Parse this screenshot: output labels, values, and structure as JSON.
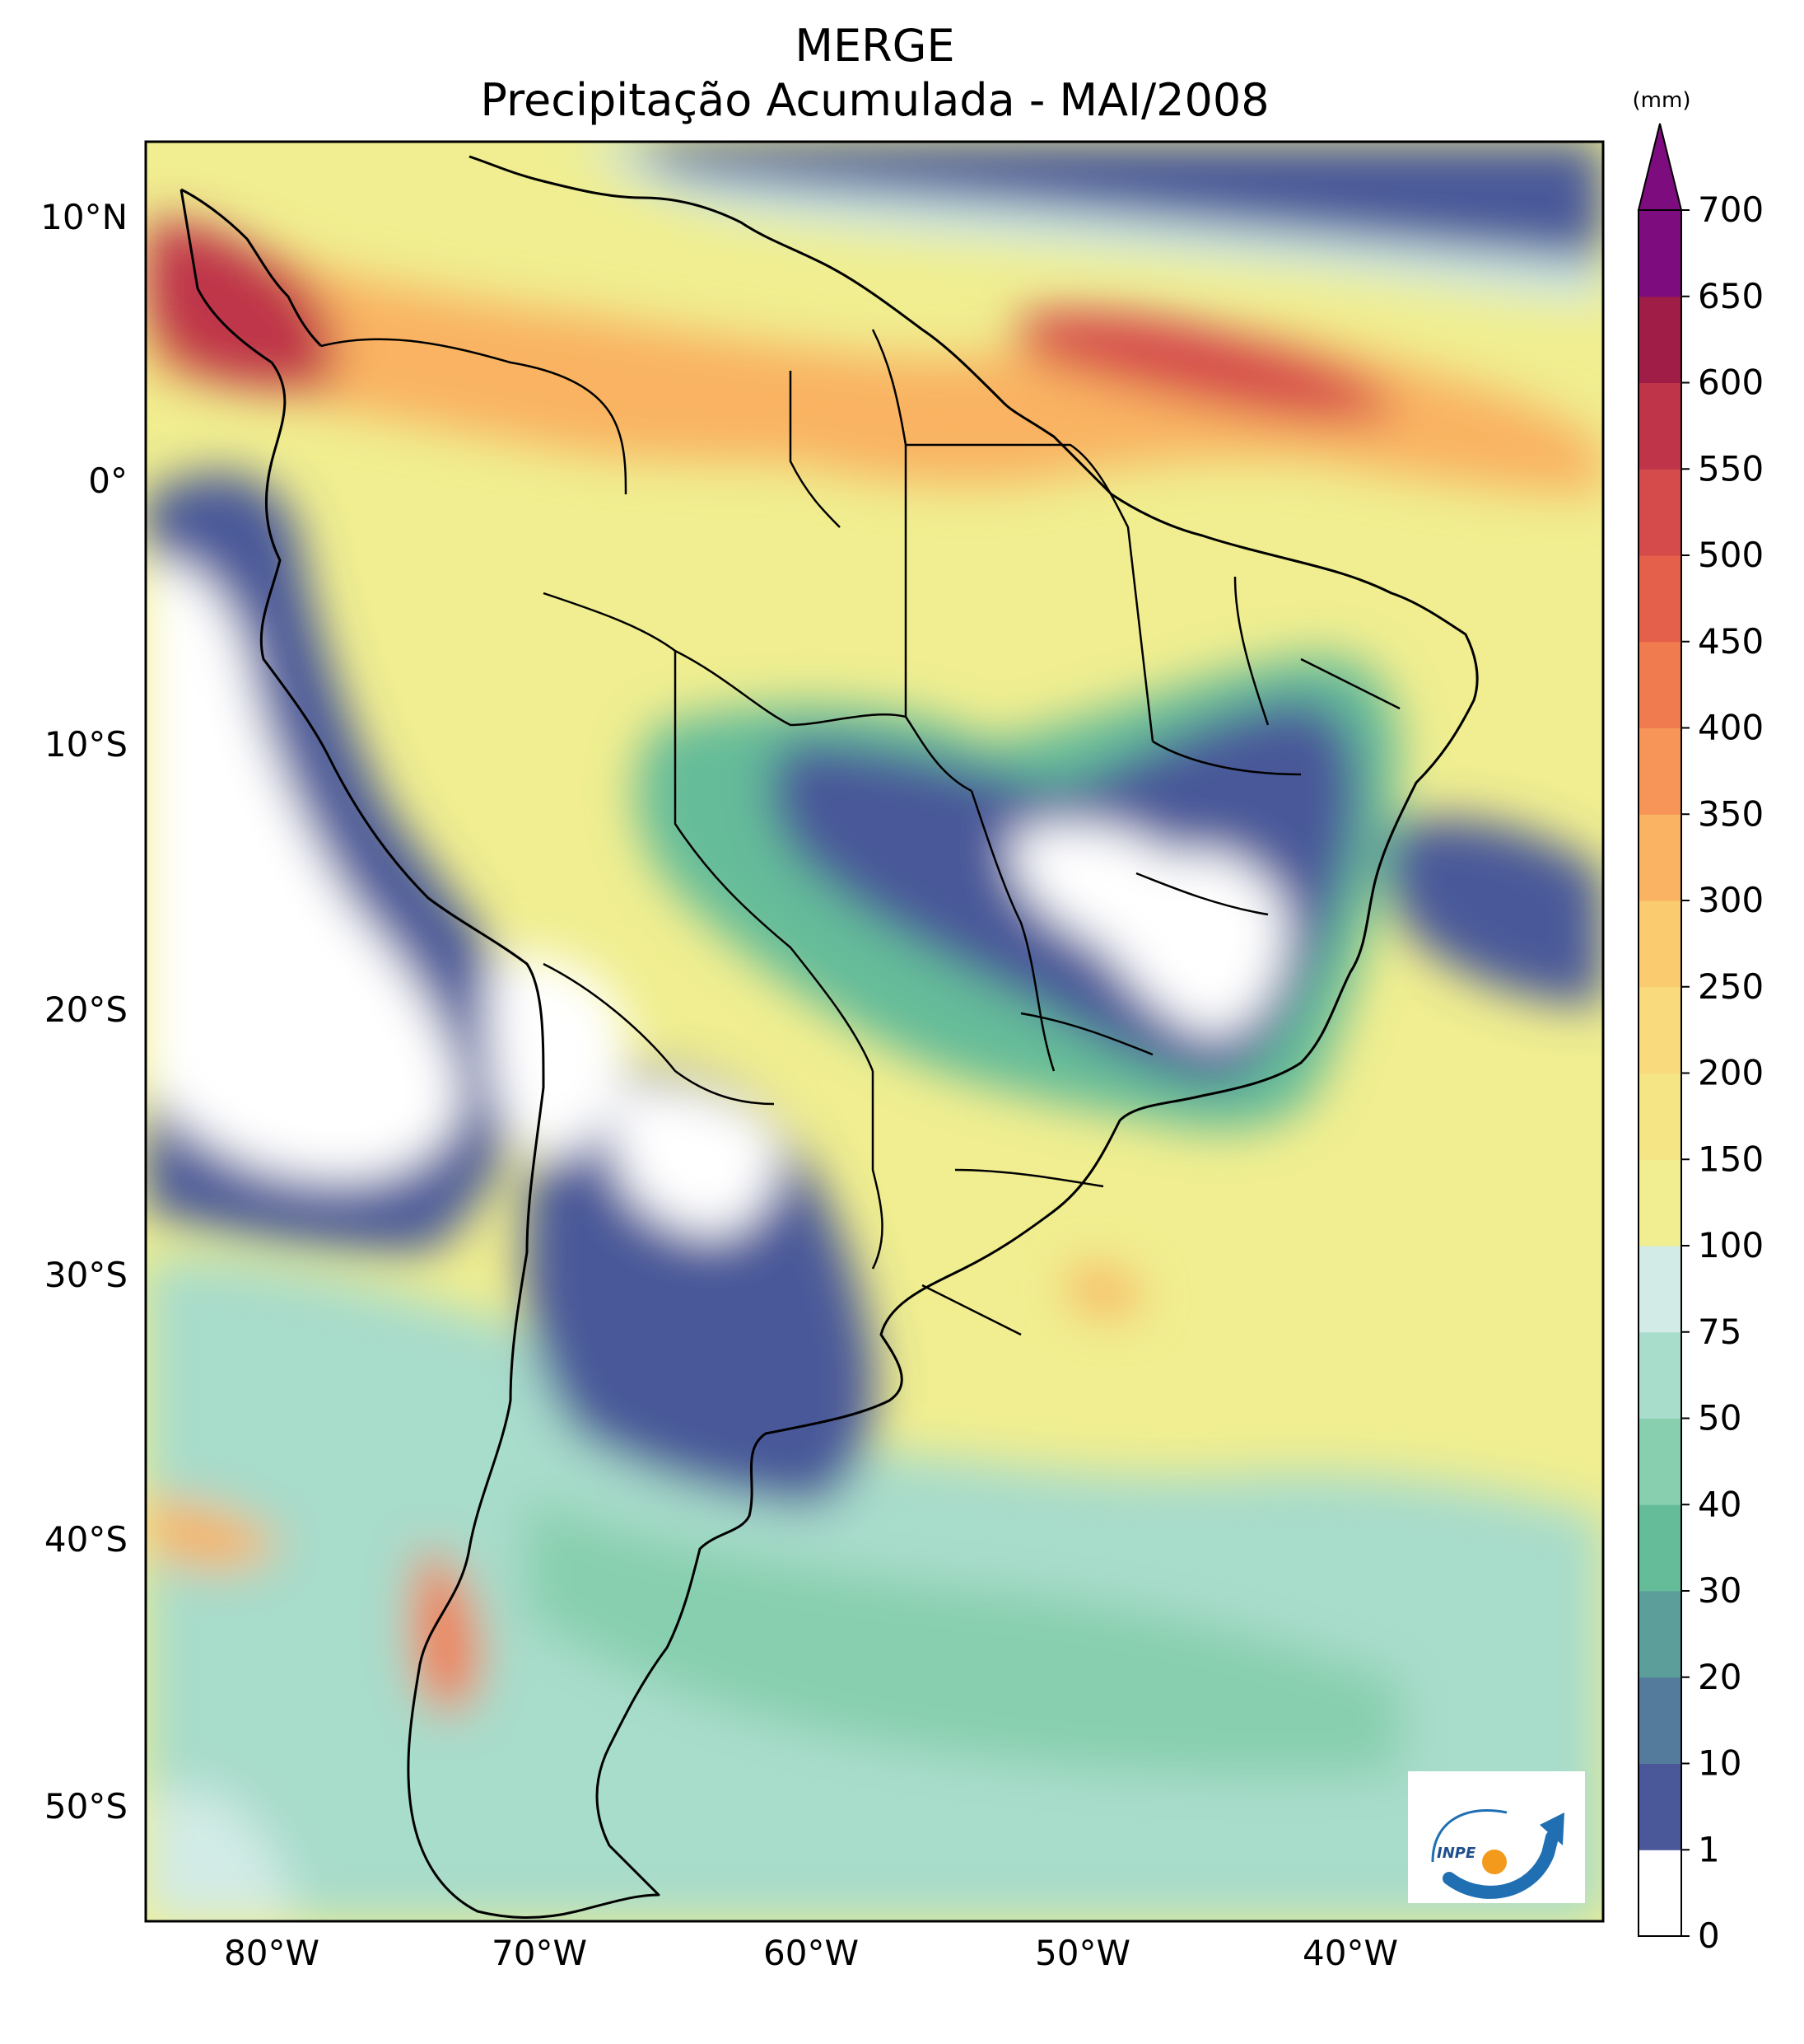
{
  "title": "MERGE",
  "subtitle": "Precipitação Acumulada - MAI/2008",
  "colorbar": {
    "unit": "(mm)",
    "ticks": [
      "0",
      "1",
      "10",
      "20",
      "30",
      "40",
      "50",
      "75",
      "100",
      "150",
      "200",
      "250",
      "300",
      "350",
      "400",
      "450",
      "500",
      "550",
      "600",
      "650",
      "700"
    ],
    "colors": [
      "#ffffff",
      "#4a5899",
      "#557b9c",
      "#5c9e9a",
      "#65bc99",
      "#87cfae",
      "#a8dccb",
      "#d2ebe6",
      "#f0ee90",
      "#f5e585",
      "#f9da7c",
      "#fbcb70",
      "#f9b362",
      "#f69557",
      "#f07b4e",
      "#e4604a",
      "#d54a4b",
      "#bf3449",
      "#a01d48",
      "#7d0d7f"
    ]
  },
  "axes": {
    "lon_labels": [
      "80°W",
      "70°W",
      "60°W",
      "50°W",
      "40°W"
    ],
    "lat_labels": [
      "10°N",
      "0°",
      "10°S",
      "20°S",
      "30°S",
      "40°S",
      "50°S"
    ]
  },
  "logo": {
    "text": "INPE",
    "icon": "inpe-logo-icon"
  },
  "chart_data": {
    "type": "heatmap",
    "title": "MERGE",
    "subtitle": "Precipitação Acumulada - MAI/2008",
    "colorbar_label": "(mm)",
    "levels": [
      0,
      1,
      10,
      20,
      30,
      40,
      50,
      75,
      100,
      150,
      200,
      250,
      300,
      350,
      400,
      450,
      500,
      550,
      600,
      650,
      700
    ],
    "lon_range": [
      -85,
      -30
    ],
    "lat_range": [
      -56,
      12.5
    ],
    "xticks": [
      -80,
      -70,
      -60,
      -50,
      -40
    ],
    "yticks": [
      10,
      0,
      -10,
      -20,
      -30,
      -40,
      -50
    ]
  }
}
